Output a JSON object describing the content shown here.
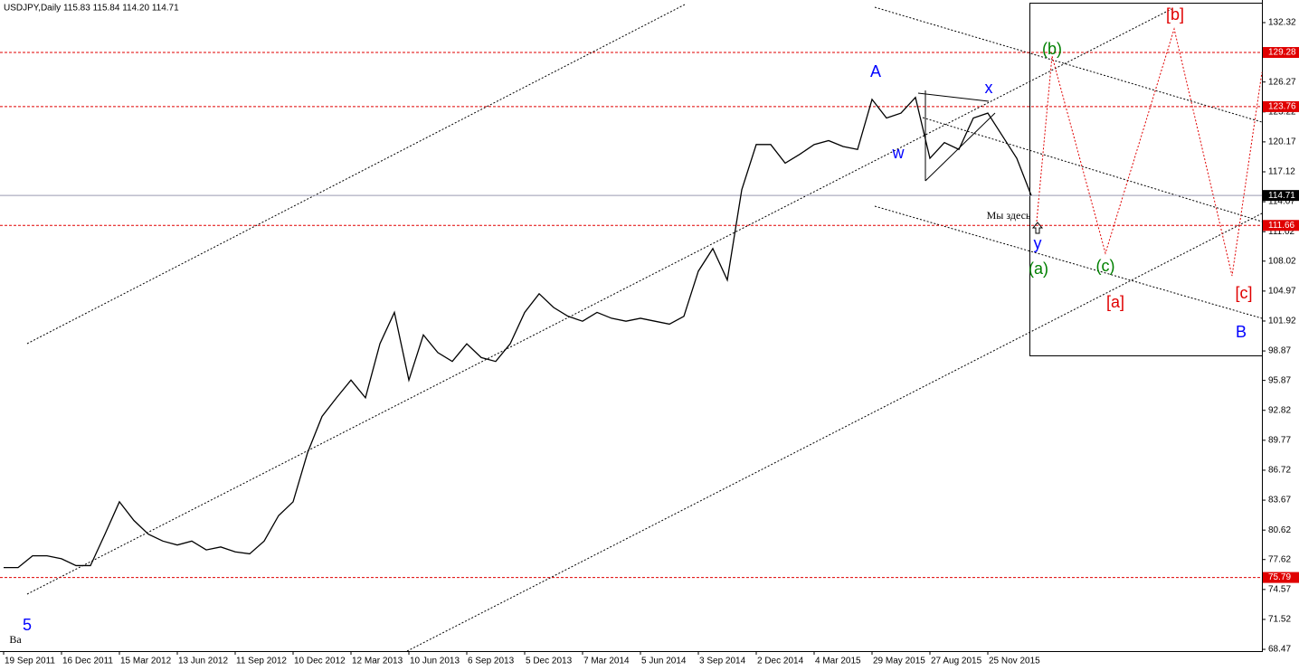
{
  "chart_data": {
    "type": "line",
    "title": "USDJPY,Daily  115.83 115.84 114.20 114.71",
    "categories": [
      "19 Sep 2011",
      null,
      null,
      null,
      "16 Dec 2011",
      null,
      null,
      null,
      "15 Mar 2012",
      null,
      null,
      null,
      "13 Jun 2012",
      null,
      null,
      null,
      "11 Sep 2012",
      null,
      null,
      null,
      "10 Dec 2012",
      null,
      null,
      null,
      "12 Mar 2013",
      null,
      null,
      null,
      "10 Jun 2013",
      null,
      null,
      null,
      "6 Sep 2013",
      null,
      null,
      null,
      "5 Dec 2013",
      null,
      null,
      null,
      "7 Mar 2014",
      null,
      null,
      null,
      "5 Jun 2014",
      null,
      null,
      null,
      "3 Sep 2014",
      null,
      null,
      null,
      "2 Dec 2014",
      null,
      null,
      null,
      "4 Mar 2015",
      null,
      null,
      null,
      "29 May 2015",
      null,
      null,
      null,
      "27 Aug 2015",
      null,
      null,
      null,
      "25 Nov 2015",
      null,
      null,
      null,
      null,
      null,
      null,
      null,
      null,
      null,
      null,
      null,
      null,
      null,
      null,
      null,
      null,
      null,
      null
    ],
    "values": [
      76.8,
      76.8,
      78.0,
      78.0,
      77.7,
      77.0,
      77.0,
      80.2,
      83.5,
      81.6,
      80.2,
      79.5,
      79.1,
      79.5,
      78.6,
      78.9,
      78.4,
      78.2,
      79.5,
      82.1,
      83.5,
      88.5,
      92.2,
      94.1,
      95.9,
      94.1,
      99.6,
      102.8,
      95.9,
      100.5,
      98.7,
      97.8,
      99.6,
      98.2,
      97.8,
      99.6,
      102.8,
      104.7,
      103.3,
      102.4,
      101.9,
      102.8,
      102.2,
      101.9,
      102.2,
      101.9,
      101.6,
      102.4,
      107.0,
      109.3,
      106.1,
      115.3,
      119.9,
      119.9,
      118.0,
      118.9,
      119.9,
      120.3,
      119.7,
      119.4,
      124.5,
      122.6,
      123.1,
      124.7,
      118.5,
      120.1,
      119.4,
      122.6,
      123.1,
      120.8,
      118.5,
      114.71,
      null,
      null,
      null,
      null,
      null,
      null,
      null,
      null,
      null,
      null,
      null,
      null,
      null,
      null,
      null
    ],
    "color": "#000000",
    "ylim": [
      68.29,
      134.44
    ],
    "yticks": [
      132.32,
      126.27,
      123.22,
      120.17,
      117.12,
      114.07,
      111.02,
      108.02,
      104.97,
      101.92,
      98.87,
      95.87,
      92.82,
      89.77,
      86.72,
      83.67,
      80.62,
      77.62,
      74.57,
      71.52,
      68.47
    ],
    "levels": [
      {
        "value": 129.28,
        "color": "#e00000"
      },
      {
        "value": 123.76,
        "color": "#e00000"
      },
      {
        "value": 114.71,
        "color": "#000000"
      },
      {
        "value": 111.66,
        "color": "#e00000"
      },
      {
        "value": 75.79,
        "color": "#e00000"
      }
    ],
    "annotations": [
      {
        "text": "A",
        "color": "#0000ff"
      },
      {
        "text": "w",
        "color": "#0000ff"
      },
      {
        "text": "x",
        "color": "#0000ff"
      },
      {
        "text": "y",
        "color": "#0000ff"
      },
      {
        "text": "(a)",
        "color": "#008000"
      },
      {
        "text": "(b)",
        "color": "#008000"
      },
      {
        "text": "(c)",
        "color": "#008000"
      },
      {
        "text": "[a]",
        "color": "#e00000"
      },
      {
        "text": "[b]",
        "color": "#e00000"
      },
      {
        "text": "[c]",
        "color": "#e00000"
      },
      {
        "text": "B",
        "color": "#0000ff"
      },
      {
        "text": "5",
        "color": "#0000ff"
      },
      {
        "text": "Ba",
        "color": "#000000"
      },
      {
        "text": "Мы здесь",
        "color": "#000000"
      }
    ]
  }
}
